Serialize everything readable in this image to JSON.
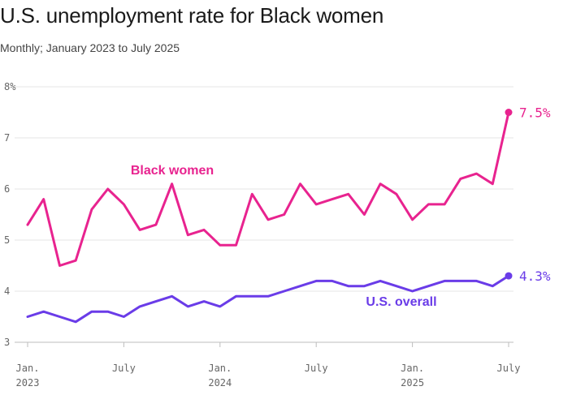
{
  "chart_data": {
    "type": "line",
    "title": "U.S. unemployment rate for Black women",
    "subtitle": "Monthly; January 2023 to July 2025",
    "xlabel": "",
    "ylabel": "",
    "ylim": [
      3,
      8
    ],
    "y_ticks": [
      {
        "value": 3,
        "label": "3"
      },
      {
        "value": 4,
        "label": "4"
      },
      {
        "value": 5,
        "label": "5"
      },
      {
        "value": 6,
        "label": "6"
      },
      {
        "value": 7,
        "label": "7"
      },
      {
        "value": 8,
        "label": "8%"
      }
    ],
    "x_ticks": [
      {
        "index": 0,
        "line1": "Jan.",
        "line2": "2023"
      },
      {
        "index": 6,
        "line1": "July",
        "line2": ""
      },
      {
        "index": 12,
        "line1": "Jan.",
        "line2": "2024"
      },
      {
        "index": 18,
        "line1": "July",
        "line2": ""
      },
      {
        "index": 24,
        "line1": "Jan.",
        "line2": "2025"
      },
      {
        "index": 30,
        "line1": "July",
        "line2": ""
      }
    ],
    "x": [
      "2023-01",
      "2023-02",
      "2023-03",
      "2023-04",
      "2023-05",
      "2023-06",
      "2023-07",
      "2023-08",
      "2023-09",
      "2023-10",
      "2023-11",
      "2023-12",
      "2024-01",
      "2024-02",
      "2024-03",
      "2024-04",
      "2024-05",
      "2024-06",
      "2024-07",
      "2024-08",
      "2024-09",
      "2024-10",
      "2024-11",
      "2024-12",
      "2025-01",
      "2025-02",
      "2025-03",
      "2025-04",
      "2025-05",
      "2025-06",
      "2025-07"
    ],
    "series": [
      {
        "name": "Black women",
        "color": "#e8238f",
        "values": [
          5.3,
          5.8,
          4.5,
          4.6,
          5.6,
          6.0,
          5.7,
          5.2,
          5.3,
          6.1,
          5.1,
          5.2,
          4.9,
          4.9,
          5.9,
          5.4,
          5.5,
          6.1,
          5.7,
          5.8,
          5.9,
          5.5,
          6.1,
          5.9,
          5.4,
          5.7,
          5.7,
          6.2,
          6.3,
          6.1,
          7.5
        ],
        "end_label": "7.5%"
      },
      {
        "name": "U.S. overall",
        "color": "#6a3ce8",
        "values": [
          3.5,
          3.6,
          3.5,
          3.4,
          3.6,
          3.6,
          3.5,
          3.7,
          3.8,
          3.9,
          3.7,
          3.8,
          3.7,
          3.9,
          3.9,
          3.9,
          4.0,
          4.1,
          4.2,
          4.2,
          4.1,
          4.1,
          4.2,
          4.1,
          4.0,
          4.1,
          4.2,
          4.2,
          4.2,
          4.1,
          4.3
        ],
        "end_label": "4.3%"
      }
    ]
  }
}
